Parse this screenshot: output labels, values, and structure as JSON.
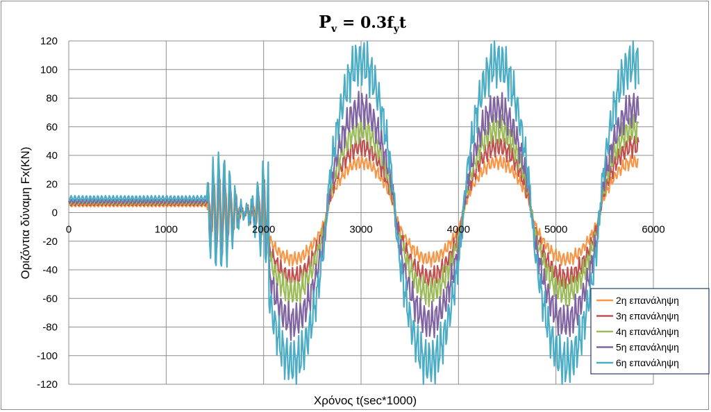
{
  "chart_data": {
    "type": "line",
    "title": {
      "main": "P",
      "main_sub": "v",
      "rhs": " = 0.3f",
      "rhs_sub": "y",
      "rhs_tail": "t"
    },
    "xlabel": "Χρόνος  t(sec*1000)",
    "ylabel": "Οριζόντια δύναμη Fx(KN)",
    "xlim": [
      0,
      6000
    ],
    "ylim": [
      -120,
      120
    ],
    "xticks": [
      "0",
      "1000",
      "2000",
      "3000",
      "4000",
      "5000",
      "6000"
    ],
    "yticks": [
      "120",
      "100",
      "80",
      "60",
      "40",
      "20",
      "0",
      "-20",
      "-40",
      "-60",
      "-80",
      "-100",
      "-120"
    ],
    "grid": "major gridlines on both axes",
    "legend_position": "bottom-right",
    "x_end": 5850,
    "phases": {
      "constant_end": 1420,
      "transition_end": 2050,
      "sine_period": 1400,
      "sine_peak_times": [
        2950,
        4300,
        5580
      ],
      "sine_trough_times": [
        2350,
        3600,
        4930
      ]
    },
    "series": [
      {
        "name": "2η επανάληψη",
        "color": "#f79646",
        "offset": 5,
        "transition_amp": 22,
        "peak": 38,
        "trough": -35,
        "noise": 4
      },
      {
        "name": "3η επανάληψη",
        "color": "#c0504d",
        "offset": 6,
        "transition_amp": 26,
        "peak": 50,
        "trough": -49,
        "noise": 6
      },
      {
        "name": "4η επανάληψη",
        "color": "#9bbb59",
        "offset": 7,
        "transition_amp": 30,
        "peak": 63,
        "trough": -60,
        "noise": 8
      },
      {
        "name": "5η επανάληψη",
        "color": "#8064a2",
        "offset": 8,
        "transition_amp": 34,
        "peak": 78,
        "trough": -82,
        "noise": 10
      },
      {
        "name": "6η επανάληψη",
        "color": "#4bacc6",
        "offset": 10,
        "transition_amp": 42,
        "peak": 113,
        "trough": -113,
        "noise": 14
      }
    ]
  }
}
